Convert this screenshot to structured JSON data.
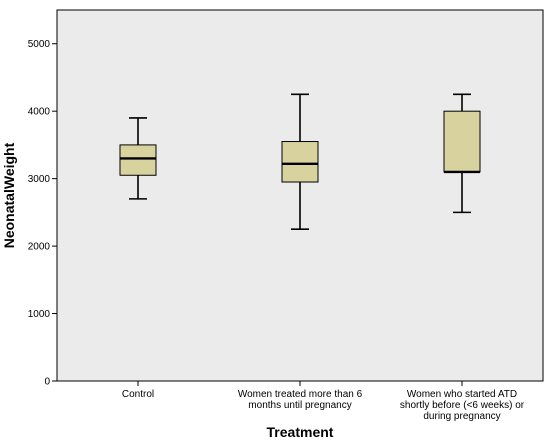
{
  "chart_data": {
    "type": "boxplot",
    "xlabel": "Treatment",
    "ylabel": "NeonatalWeight",
    "ylim": [
      0,
      5500
    ],
    "yticks": [
      "0",
      "1000",
      "2000",
      "3000",
      "4000",
      "5000"
    ],
    "grid": false,
    "categories": [
      [
        "Control"
      ],
      [
        "Women treated more than 6",
        "months until pregnancy"
      ],
      [
        "Women who started ATD",
        "shortly before (<6 weeks) or",
        "during pregnancy"
      ]
    ],
    "boxes": [
      {
        "min": 2700,
        "q1": 3050,
        "median": 3300,
        "q3": 3500,
        "max": 3900
      },
      {
        "min": 2250,
        "q1": 2950,
        "median": 3220,
        "q3": 3550,
        "max": 4250
      },
      {
        "min": 2500,
        "q1": 3100,
        "median": 3100,
        "q3": 4000,
        "max": 4250
      }
    ],
    "colors": {
      "plot_background": "#ebebeb",
      "box_fill": "#d8d39e",
      "line": "#000000"
    }
  }
}
